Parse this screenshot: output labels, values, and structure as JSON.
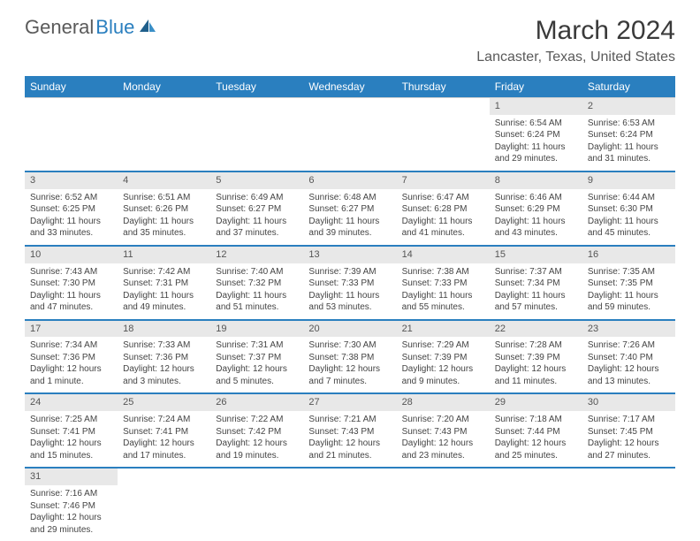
{
  "logo": {
    "general": "General",
    "blue": "Blue"
  },
  "title": "March 2024",
  "location": "Lancaster, Texas, United States",
  "colors": {
    "header_bg": "#2a7fbf",
    "header_text": "#ffffff",
    "daynum_bg": "#e8e8e8",
    "row_border": "#2a7fbf",
    "text": "#444444"
  },
  "day_headers": [
    "Sunday",
    "Monday",
    "Tuesday",
    "Wednesday",
    "Thursday",
    "Friday",
    "Saturday"
  ],
  "weeks": [
    [
      null,
      null,
      null,
      null,
      null,
      {
        "n": "1",
        "sr": "Sunrise: 6:54 AM",
        "ss": "Sunset: 6:24 PM",
        "dl1": "Daylight: 11 hours",
        "dl2": "and 29 minutes."
      },
      {
        "n": "2",
        "sr": "Sunrise: 6:53 AM",
        "ss": "Sunset: 6:24 PM",
        "dl1": "Daylight: 11 hours",
        "dl2": "and 31 minutes."
      }
    ],
    [
      {
        "n": "3",
        "sr": "Sunrise: 6:52 AM",
        "ss": "Sunset: 6:25 PM",
        "dl1": "Daylight: 11 hours",
        "dl2": "and 33 minutes."
      },
      {
        "n": "4",
        "sr": "Sunrise: 6:51 AM",
        "ss": "Sunset: 6:26 PM",
        "dl1": "Daylight: 11 hours",
        "dl2": "and 35 minutes."
      },
      {
        "n": "5",
        "sr": "Sunrise: 6:49 AM",
        "ss": "Sunset: 6:27 PM",
        "dl1": "Daylight: 11 hours",
        "dl2": "and 37 minutes."
      },
      {
        "n": "6",
        "sr": "Sunrise: 6:48 AM",
        "ss": "Sunset: 6:27 PM",
        "dl1": "Daylight: 11 hours",
        "dl2": "and 39 minutes."
      },
      {
        "n": "7",
        "sr": "Sunrise: 6:47 AM",
        "ss": "Sunset: 6:28 PM",
        "dl1": "Daylight: 11 hours",
        "dl2": "and 41 minutes."
      },
      {
        "n": "8",
        "sr": "Sunrise: 6:46 AM",
        "ss": "Sunset: 6:29 PM",
        "dl1": "Daylight: 11 hours",
        "dl2": "and 43 minutes."
      },
      {
        "n": "9",
        "sr": "Sunrise: 6:44 AM",
        "ss": "Sunset: 6:30 PM",
        "dl1": "Daylight: 11 hours",
        "dl2": "and 45 minutes."
      }
    ],
    [
      {
        "n": "10",
        "sr": "Sunrise: 7:43 AM",
        "ss": "Sunset: 7:30 PM",
        "dl1": "Daylight: 11 hours",
        "dl2": "and 47 minutes."
      },
      {
        "n": "11",
        "sr": "Sunrise: 7:42 AM",
        "ss": "Sunset: 7:31 PM",
        "dl1": "Daylight: 11 hours",
        "dl2": "and 49 minutes."
      },
      {
        "n": "12",
        "sr": "Sunrise: 7:40 AM",
        "ss": "Sunset: 7:32 PM",
        "dl1": "Daylight: 11 hours",
        "dl2": "and 51 minutes."
      },
      {
        "n": "13",
        "sr": "Sunrise: 7:39 AM",
        "ss": "Sunset: 7:33 PM",
        "dl1": "Daylight: 11 hours",
        "dl2": "and 53 minutes."
      },
      {
        "n": "14",
        "sr": "Sunrise: 7:38 AM",
        "ss": "Sunset: 7:33 PM",
        "dl1": "Daylight: 11 hours",
        "dl2": "and 55 minutes."
      },
      {
        "n": "15",
        "sr": "Sunrise: 7:37 AM",
        "ss": "Sunset: 7:34 PM",
        "dl1": "Daylight: 11 hours",
        "dl2": "and 57 minutes."
      },
      {
        "n": "16",
        "sr": "Sunrise: 7:35 AM",
        "ss": "Sunset: 7:35 PM",
        "dl1": "Daylight: 11 hours",
        "dl2": "and 59 minutes."
      }
    ],
    [
      {
        "n": "17",
        "sr": "Sunrise: 7:34 AM",
        "ss": "Sunset: 7:36 PM",
        "dl1": "Daylight: 12 hours",
        "dl2": "and 1 minute."
      },
      {
        "n": "18",
        "sr": "Sunrise: 7:33 AM",
        "ss": "Sunset: 7:36 PM",
        "dl1": "Daylight: 12 hours",
        "dl2": "and 3 minutes."
      },
      {
        "n": "19",
        "sr": "Sunrise: 7:31 AM",
        "ss": "Sunset: 7:37 PM",
        "dl1": "Daylight: 12 hours",
        "dl2": "and 5 minutes."
      },
      {
        "n": "20",
        "sr": "Sunrise: 7:30 AM",
        "ss": "Sunset: 7:38 PM",
        "dl1": "Daylight: 12 hours",
        "dl2": "and 7 minutes."
      },
      {
        "n": "21",
        "sr": "Sunrise: 7:29 AM",
        "ss": "Sunset: 7:39 PM",
        "dl1": "Daylight: 12 hours",
        "dl2": "and 9 minutes."
      },
      {
        "n": "22",
        "sr": "Sunrise: 7:28 AM",
        "ss": "Sunset: 7:39 PM",
        "dl1": "Daylight: 12 hours",
        "dl2": "and 11 minutes."
      },
      {
        "n": "23",
        "sr": "Sunrise: 7:26 AM",
        "ss": "Sunset: 7:40 PM",
        "dl1": "Daylight: 12 hours",
        "dl2": "and 13 minutes."
      }
    ],
    [
      {
        "n": "24",
        "sr": "Sunrise: 7:25 AM",
        "ss": "Sunset: 7:41 PM",
        "dl1": "Daylight: 12 hours",
        "dl2": "and 15 minutes."
      },
      {
        "n": "25",
        "sr": "Sunrise: 7:24 AM",
        "ss": "Sunset: 7:41 PM",
        "dl1": "Daylight: 12 hours",
        "dl2": "and 17 minutes."
      },
      {
        "n": "26",
        "sr": "Sunrise: 7:22 AM",
        "ss": "Sunset: 7:42 PM",
        "dl1": "Daylight: 12 hours",
        "dl2": "and 19 minutes."
      },
      {
        "n": "27",
        "sr": "Sunrise: 7:21 AM",
        "ss": "Sunset: 7:43 PM",
        "dl1": "Daylight: 12 hours",
        "dl2": "and 21 minutes."
      },
      {
        "n": "28",
        "sr": "Sunrise: 7:20 AM",
        "ss": "Sunset: 7:43 PM",
        "dl1": "Daylight: 12 hours",
        "dl2": "and 23 minutes."
      },
      {
        "n": "29",
        "sr": "Sunrise: 7:18 AM",
        "ss": "Sunset: 7:44 PM",
        "dl1": "Daylight: 12 hours",
        "dl2": "and 25 minutes."
      },
      {
        "n": "30",
        "sr": "Sunrise: 7:17 AM",
        "ss": "Sunset: 7:45 PM",
        "dl1": "Daylight: 12 hours",
        "dl2": "and 27 minutes."
      }
    ],
    [
      {
        "n": "31",
        "sr": "Sunrise: 7:16 AM",
        "ss": "Sunset: 7:46 PM",
        "dl1": "Daylight: 12 hours",
        "dl2": "and 29 minutes."
      },
      null,
      null,
      null,
      null,
      null,
      null
    ]
  ]
}
